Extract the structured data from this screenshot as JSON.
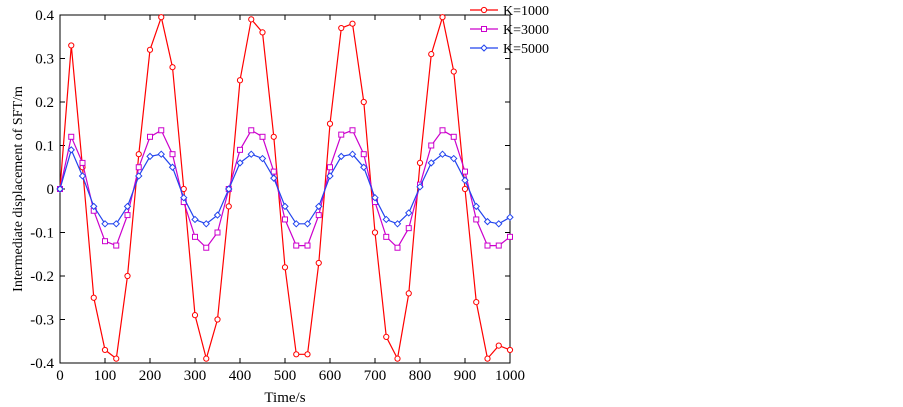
{
  "chart_data": {
    "type": "line",
    "title": "",
    "xlabel": "Time/s",
    "ylabel": "Intermediate displacement of SFT/m",
    "xlim": [
      0,
      1000
    ],
    "ylim": [
      -0.4,
      0.4
    ],
    "xticks": [
      0,
      100,
      200,
      300,
      400,
      500,
      600,
      700,
      800,
      900,
      1000
    ],
    "yticks": [
      -0.4,
      -0.3,
      -0.2,
      -0.1,
      0,
      0.1,
      0.2,
      0.3,
      0.4
    ],
    "grid": false,
    "legend_position": "top-right",
    "series": [
      {
        "name": "K=1000",
        "color": "#ff0000",
        "marker": "circle",
        "x": [
          0,
          25,
          50,
          75,
          100,
          125,
          150,
          175,
          200,
          225,
          250,
          275,
          300,
          325,
          350,
          375,
          400,
          425,
          450,
          475,
          500,
          525,
          550,
          575,
          600,
          625,
          650,
          675,
          700,
          725,
          750,
          775,
          800,
          825,
          850,
          875,
          900,
          925,
          950,
          975,
          1000
        ],
        "y": [
          0,
          0.33,
          0.05,
          -0.25,
          -0.37,
          -0.39,
          -0.2,
          0.08,
          0.32,
          0.395,
          0.28,
          0.0,
          -0.29,
          -0.39,
          -0.3,
          -0.04,
          0.25,
          0.39,
          0.36,
          0.12,
          -0.18,
          -0.38,
          -0.38,
          -0.17,
          0.15,
          0.37,
          0.38,
          0.2,
          -0.1,
          -0.34,
          -0.39,
          -0.24,
          0.06,
          0.31,
          0.395,
          0.27,
          0.0,
          -0.26,
          -0.39,
          -0.36,
          -0.37
        ]
      },
      {
        "name": "K=3000",
        "color": "#cc00cc",
        "marker": "square",
        "x": [
          0,
          25,
          50,
          75,
          100,
          125,
          150,
          175,
          200,
          225,
          250,
          275,
          300,
          325,
          350,
          375,
          400,
          425,
          450,
          475,
          500,
          525,
          550,
          575,
          600,
          625,
          650,
          675,
          700,
          725,
          750,
          775,
          800,
          825,
          850,
          875,
          900,
          925,
          950,
          975,
          1000
        ],
        "y": [
          0,
          0.12,
          0.06,
          -0.05,
          -0.12,
          -0.13,
          -0.06,
          0.05,
          0.12,
          0.135,
          0.08,
          -0.03,
          -0.11,
          -0.135,
          -0.1,
          0.0,
          0.09,
          0.135,
          0.12,
          0.04,
          -0.07,
          -0.13,
          -0.13,
          -0.06,
          0.05,
          0.125,
          0.135,
          0.08,
          -0.03,
          -0.11,
          -0.135,
          -0.09,
          0.01,
          0.1,
          0.135,
          0.12,
          0.04,
          -0.07,
          -0.13,
          -0.13,
          -0.11
        ]
      },
      {
        "name": "K=5000",
        "color": "#2244ee",
        "marker": "diamond",
        "x": [
          0,
          25,
          50,
          75,
          100,
          125,
          150,
          175,
          200,
          225,
          250,
          275,
          300,
          325,
          350,
          375,
          400,
          425,
          450,
          475,
          500,
          525,
          550,
          575,
          600,
          625,
          650,
          675,
          700,
          725,
          750,
          775,
          800,
          825,
          850,
          875,
          900,
          925,
          950,
          975,
          1000
        ],
        "y": [
          0,
          0.09,
          0.03,
          -0.04,
          -0.08,
          -0.08,
          -0.04,
          0.03,
          0.075,
          0.08,
          0.05,
          -0.02,
          -0.07,
          -0.08,
          -0.06,
          0.0,
          0.06,
          0.08,
          0.07,
          0.025,
          -0.04,
          -0.08,
          -0.08,
          -0.04,
          0.03,
          0.075,
          0.08,
          0.05,
          -0.02,
          -0.07,
          -0.08,
          -0.055,
          0.005,
          0.06,
          0.08,
          0.07,
          0.02,
          -0.04,
          -0.075,
          -0.08,
          -0.065
        ]
      }
    ]
  }
}
